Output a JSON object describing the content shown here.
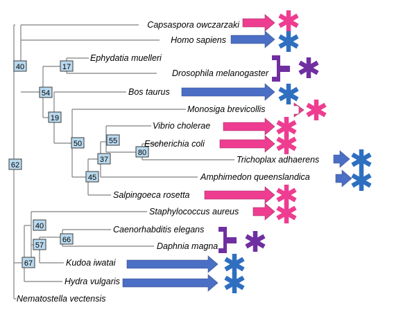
{
  "colors": {
    "pink": "#ee3d91",
    "blue": "#4a6fc4",
    "purple": "#6f2fa0",
    "star_blue": "#2f6fc0",
    "node_fill": "#b9d9ee",
    "node_border": "#3a3a3a"
  },
  "icons": {
    "arrow": "block-arrow-icon",
    "asterisk": "asterisk-icon",
    "tee": "tee-inhibitor-icon"
  },
  "nodes": {
    "n40a": "40",
    "n17": "17",
    "n54": "54",
    "n19": "19",
    "n50": "50",
    "n55": "55",
    "n80": "80",
    "n37": "37",
    "n45": "45",
    "n62": "62",
    "n40b": "40",
    "n66": "66",
    "n57": "57",
    "n67": "67"
  },
  "taxa": {
    "capsaspora": "Capsaspora owczarzaki",
    "homo": "Homo sapiens",
    "ephydatia": "Ephydatia muelleri",
    "drosophila": "Drosophila melanogaster",
    "bos": "Bos taurus",
    "monosiga": "Monosiga brevicollis",
    "vibrio": "Vibrio cholerae",
    "escherichia": "Escherichia coli",
    "trichoplax": "Trichoplax adhaerens",
    "amphimedon": "Amphimedon queenslandica",
    "salpingoeca": "Salpingoeca rosetta",
    "staphylococcus": "Staphylococcus aureus",
    "caenorhabditis": "Caenorhabditis elegans",
    "daphnia": "Daphnia magna",
    "kudoa": "Kudoa iwatai",
    "hydra": "Hydra vulgaris",
    "nematostella": "Nematostella vectensis"
  }
}
